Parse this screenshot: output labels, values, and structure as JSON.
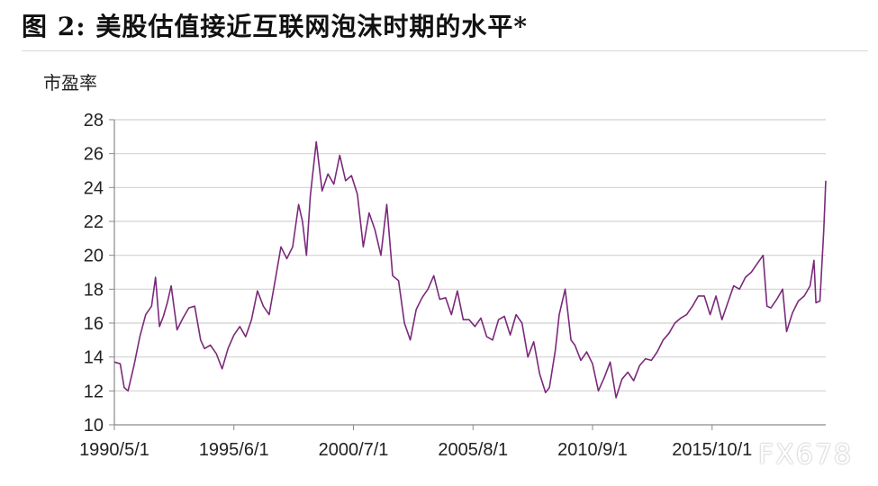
{
  "figure": {
    "title": "图 2: 美股估值接近互联网泡沫时期的水平*",
    "watermark": "FX678"
  },
  "chart_data": {
    "type": "line",
    "title": "图 2: 美股估值接近互联网泡沫时期的水平*",
    "xlabel": "",
    "ylabel": "市盈率",
    "ylim": [
      10,
      28
    ],
    "xlim": [
      "1990-05-01",
      "2020-08-01"
    ],
    "yticks": [
      10,
      12,
      14,
      16,
      18,
      20,
      22,
      24,
      26,
      28
    ],
    "xtick_labels": [
      "1990/5/1",
      "1995/6/1",
      "2000/7/1",
      "2005/8/1",
      "2010/9/1",
      "2015/10/1"
    ],
    "xtick_dates": [
      "1990-05-01",
      "1995-06-01",
      "2000-07-01",
      "2005-08-01",
      "2010-09-01",
      "2015-10-01"
    ],
    "grid": true,
    "line_color": "#7a2a7a",
    "series": [
      {
        "x": [
          "1990-05",
          "1990-08",
          "1990-10",
          "1990-12",
          "1991-03",
          "1991-06",
          "1991-09",
          "1991-12",
          "1992-02",
          "1992-04",
          "1992-06",
          "1992-08",
          "1992-10",
          "1993-01",
          "1993-04",
          "1993-07",
          "1993-10",
          "1994-01",
          "1994-03",
          "1994-06",
          "1994-09",
          "1994-12",
          "1995-03",
          "1995-06",
          "1995-09",
          "1995-12",
          "1996-03",
          "1996-06",
          "1996-09",
          "1996-12",
          "1997-03",
          "1997-06",
          "1997-09",
          "1997-12",
          "1998-03",
          "1998-05",
          "1998-07",
          "1998-09",
          "1998-12",
          "1999-03",
          "1999-06",
          "1999-09",
          "1999-12",
          "2000-03",
          "2000-06",
          "2000-09",
          "2000-12",
          "2001-03",
          "2001-06",
          "2001-09",
          "2001-12",
          "2002-03",
          "2002-06",
          "2002-09",
          "2002-12",
          "2003-03",
          "2003-06",
          "2003-09",
          "2003-12",
          "2004-03",
          "2004-06",
          "2004-09",
          "2004-12",
          "2005-03",
          "2005-06",
          "2005-09",
          "2005-12",
          "2006-03",
          "2006-06",
          "2006-09",
          "2006-12",
          "2007-03",
          "2007-06",
          "2007-09",
          "2007-12",
          "2008-03",
          "2008-06",
          "2008-09",
          "2008-11",
          "2009-02",
          "2009-04",
          "2009-07",
          "2009-10",
          "2009-12",
          "2010-03",
          "2010-06",
          "2010-09",
          "2010-12",
          "2011-03",
          "2011-06",
          "2011-09",
          "2011-12",
          "2012-03",
          "2012-06",
          "2012-09",
          "2012-12",
          "2013-03",
          "2013-06",
          "2013-09",
          "2013-12",
          "2014-03",
          "2014-06",
          "2014-09",
          "2014-12",
          "2015-03",
          "2015-06",
          "2015-09",
          "2015-12",
          "2016-03",
          "2016-06",
          "2016-09",
          "2016-12",
          "2017-03",
          "2017-06",
          "2017-09",
          "2017-12",
          "2018-02",
          "2018-04",
          "2018-07",
          "2018-10",
          "2018-12",
          "2019-03",
          "2019-06",
          "2019-09",
          "2019-12",
          "2020-02",
          "2020-03",
          "2020-05",
          "2020-07",
          "2020-08"
        ],
        "values": [
          13.7,
          13.6,
          12.2,
          12.0,
          13.5,
          15.2,
          16.5,
          17.0,
          18.7,
          15.8,
          16.4,
          17.2,
          18.2,
          15.6,
          16.3,
          16.9,
          17.0,
          15.0,
          14.5,
          14.7,
          14.2,
          13.3,
          14.5,
          15.3,
          15.8,
          15.2,
          16.2,
          17.9,
          17.0,
          16.5,
          18.5,
          20.5,
          19.8,
          20.5,
          23.0,
          22.0,
          20.0,
          23.5,
          26.7,
          23.8,
          24.8,
          24.2,
          25.9,
          24.4,
          24.7,
          23.6,
          20.5,
          22.5,
          21.5,
          20.0,
          23.0,
          18.8,
          18.5,
          16.0,
          15.0,
          16.8,
          17.5,
          18.0,
          18.8,
          17.4,
          17.5,
          16.5,
          17.9,
          16.2,
          16.2,
          15.8,
          16.3,
          15.2,
          15.0,
          16.2,
          16.4,
          15.3,
          16.5,
          16.0,
          14.0,
          14.9,
          13.0,
          11.9,
          12.2,
          14.4,
          16.5,
          18.0,
          15.0,
          14.7,
          13.8,
          14.3,
          13.6,
          12.0,
          12.8,
          13.7,
          11.6,
          12.7,
          13.1,
          12.6,
          13.5,
          13.9,
          13.8,
          14.3,
          15.0,
          15.4,
          16.0,
          16.3,
          16.5,
          17.0,
          17.6,
          17.6,
          16.5,
          17.6,
          16.2,
          17.2,
          18.2,
          18.0,
          18.7,
          19.0,
          19.5,
          20.0,
          17.0,
          16.9,
          17.4,
          18.0,
          15.5,
          16.6,
          17.3,
          17.6,
          18.2,
          19.7,
          17.2,
          17.3,
          21.5,
          24.4
        ]
      }
    ]
  }
}
